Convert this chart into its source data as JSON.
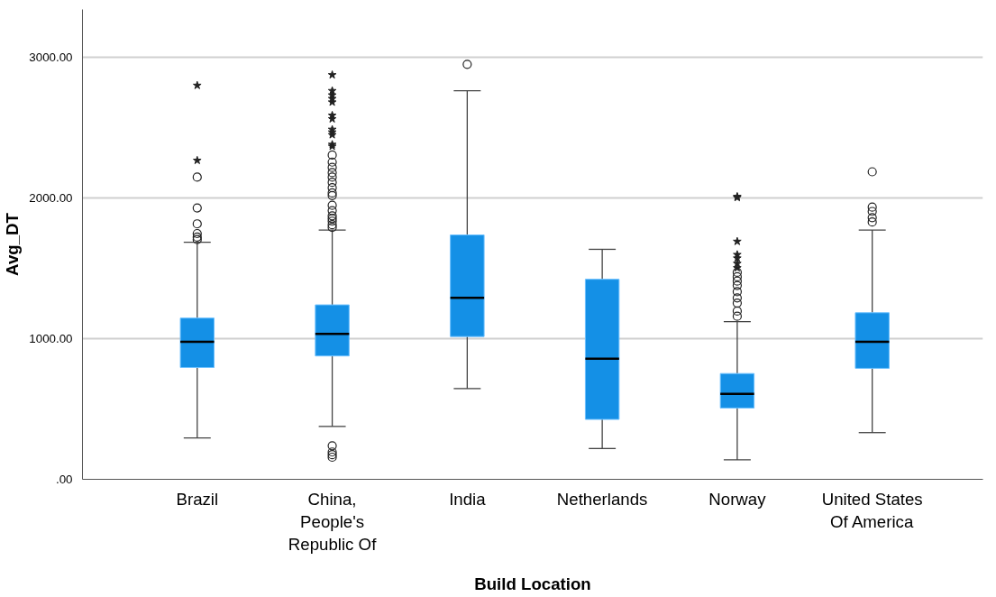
{
  "chart_data": {
    "type": "box",
    "xlabel": "Build Location",
    "ylabel": "Avg_DT",
    "categories": [
      "Brazil",
      "China,\nPeople's\nRepublic Of",
      "India",
      "Netherlands",
      "Norway",
      "United States\nOf America"
    ],
    "color": "#1490e6",
    "boxes": [
      {
        "low": 294,
        "q1": 795,
        "median": 977,
        "q3": 1146,
        "high": 1685,
        "outliers": [
          2800,
          2267,
          2148,
          1929,
          1816,
          1747,
          1722,
          1704
        ]
      },
      {
        "low": 376,
        "q1": 877,
        "median": 1033,
        "q3": 1240,
        "high": 1772,
        "outliers": [
          2875,
          2762,
          2731,
          2706,
          2681,
          2587,
          2562,
          2487,
          2468,
          2449,
          2380,
          2367,
          2305,
          2255,
          2217,
          2180,
          2148,
          2111,
          2073,
          2036,
          2017,
          1948,
          1910,
          1873,
          1854,
          1835,
          1810,
          1791,
          238,
          194,
          175,
          157
        ]
      },
      {
        "low": 645,
        "q1": 1015,
        "median": 1290,
        "q3": 1737,
        "high": 2762,
        "outliers": [
          2950
        ]
      },
      {
        "low": 219,
        "q1": 426,
        "median": 858,
        "q3": 1422,
        "high": 1635
      },
      {
        "low": 138,
        "q1": 507,
        "median": 608,
        "q3": 752,
        "high": 1121,
        "outliers": [
          2010,
          2003,
          1691,
          1597,
          1572,
          1534,
          1503,
          1472,
          1440,
          1409,
          1378,
          1334,
          1290,
          1253,
          1196,
          1159
        ]
      },
      {
        "low": 332,
        "q1": 789,
        "median": 977,
        "q3": 1184,
        "high": 1772,
        "outliers": [
          2186,
          1935,
          1904,
          1860,
          1829
        ]
      }
    ],
    "ylim": [
      0,
      3340
    ],
    "yticks": [
      {
        "value": 0,
        "label": ".00"
      },
      {
        "value": 1000,
        "label": "1000.00"
      },
      {
        "value": 2000,
        "label": "2000.00"
      },
      {
        "value": 3000,
        "label": "3000.00"
      }
    ],
    "grid": "y"
  }
}
